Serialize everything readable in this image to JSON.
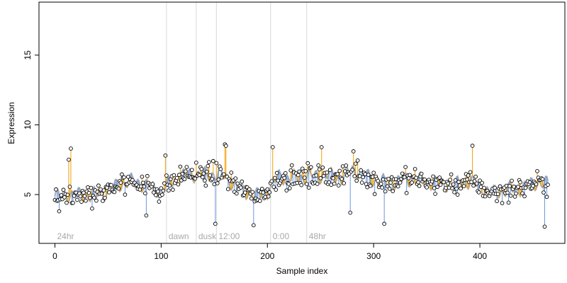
{
  "colors": {
    "smooth_line": "#b0b0b0",
    "above_stem": "#f0a000",
    "below_stem": "#6c96e0",
    "marker_edge": "#000000",
    "marker_fill": "#ffffff",
    "annotation_line": "#d8d8d8",
    "annotation_text": "#a8a8a8"
  },
  "chart_data": {
    "type": "scatter",
    "title": "",
    "xlabel": "Sample index",
    "ylabel": "Expression",
    "xlim": [
      -15,
      480
    ],
    "ylim": [
      1.5,
      18.8
    ],
    "x_ticks": [
      0,
      100,
      200,
      300,
      400
    ],
    "y_ticks": [
      5,
      10,
      15
    ],
    "n_points": 465,
    "point_style": "open circle, stem to smoothed trend (orange above, blue below)",
    "annotations": [
      {
        "label": "24hr",
        "x": 0,
        "line": false
      },
      {
        "label": "dawn",
        "x": 105,
        "line": true
      },
      {
        "label": "dusk",
        "x": 133,
        "line": true
      },
      {
        "label": "12:00",
        "x": 152,
        "line": true
      },
      {
        "label": "0:00",
        "x": 203,
        "line": true
      },
      {
        "label": "48hr",
        "x": 237,
        "line": true
      }
    ],
    "trend_anchors": [
      {
        "x": 0,
        "y": 4.9
      },
      {
        "x": 15,
        "y": 5.0
      },
      {
        "x": 30,
        "y": 4.9
      },
      {
        "x": 45,
        "y": 5.1
      },
      {
        "x": 60,
        "y": 5.7
      },
      {
        "x": 75,
        "y": 6.0
      },
      {
        "x": 90,
        "y": 5.5
      },
      {
        "x": 100,
        "y": 5.3
      },
      {
        "x": 110,
        "y": 5.9
      },
      {
        "x": 125,
        "y": 6.5
      },
      {
        "x": 140,
        "y": 6.4
      },
      {
        "x": 155,
        "y": 6.5
      },
      {
        "x": 165,
        "y": 6.0
      },
      {
        "x": 175,
        "y": 5.3
      },
      {
        "x": 190,
        "y": 4.9
      },
      {
        "x": 200,
        "y": 5.2
      },
      {
        "x": 210,
        "y": 6.3
      },
      {
        "x": 225,
        "y": 6.2
      },
      {
        "x": 240,
        "y": 6.3
      },
      {
        "x": 255,
        "y": 6.4
      },
      {
        "x": 270,
        "y": 6.2
      },
      {
        "x": 280,
        "y": 6.8
      },
      {
        "x": 290,
        "y": 6.5
      },
      {
        "x": 300,
        "y": 6.0
      },
      {
        "x": 315,
        "y": 5.8
      },
      {
        "x": 330,
        "y": 6.1
      },
      {
        "x": 345,
        "y": 6.0
      },
      {
        "x": 360,
        "y": 5.8
      },
      {
        "x": 375,
        "y": 5.7
      },
      {
        "x": 390,
        "y": 5.9
      },
      {
        "x": 400,
        "y": 5.6
      },
      {
        "x": 410,
        "y": 5.1
      },
      {
        "x": 425,
        "y": 5.3
      },
      {
        "x": 440,
        "y": 5.5
      },
      {
        "x": 455,
        "y": 5.9
      },
      {
        "x": 464,
        "y": 5.7
      }
    ],
    "notable_points": [
      {
        "x": 4,
        "y": 3.8
      },
      {
        "x": 13,
        "y": 7.5
      },
      {
        "x": 15,
        "y": 8.3
      },
      {
        "x": 35,
        "y": 4.0
      },
      {
        "x": 86,
        "y": 3.5
      },
      {
        "x": 104,
        "y": 7.8
      },
      {
        "x": 151,
        "y": 2.9
      },
      {
        "x": 160,
        "y": 8.6
      },
      {
        "x": 161,
        "y": 8.5
      },
      {
        "x": 187,
        "y": 2.8
      },
      {
        "x": 205,
        "y": 8.4
      },
      {
        "x": 251,
        "y": 8.4
      },
      {
        "x": 278,
        "y": 3.7
      },
      {
        "x": 281,
        "y": 8.1
      },
      {
        "x": 310,
        "y": 2.9
      },
      {
        "x": 393,
        "y": 8.5
      },
      {
        "x": 461,
        "y": 2.7
      }
    ]
  }
}
